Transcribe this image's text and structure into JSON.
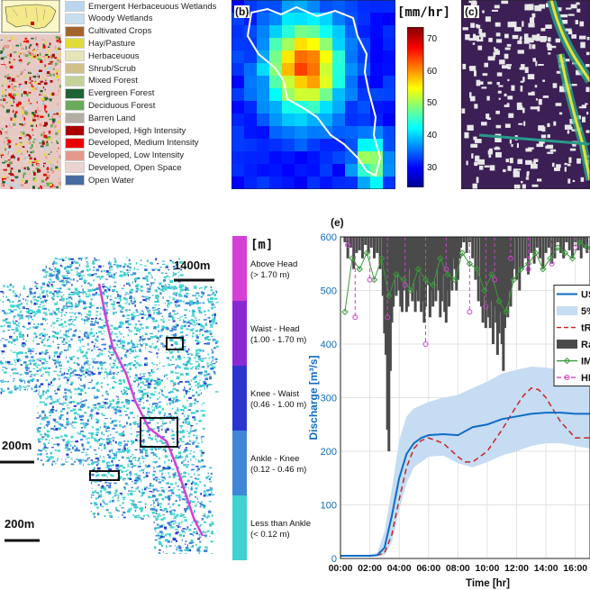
{
  "panel_a": {
    "legend": [
      {
        "label": "Emergent Herbaceuous Wetlands",
        "color": "#b9d6ee"
      },
      {
        "label": "Woody Wetlands",
        "color": "#c6dff0"
      },
      {
        "label": "Cultivated Crops",
        "color": "#a3652b"
      },
      {
        "label": "Hay/Pasture",
        "color": "#e1dc3c"
      },
      {
        "label": "Herbaceuous",
        "color": "#e7e5b8"
      },
      {
        "label": "Shrub/Scrub",
        "color": "#d2c08a"
      },
      {
        "label": "Mixed Forest",
        "color": "#c4d39a"
      },
      {
        "label": "Evergreen Forest",
        "color": "#1f6434"
      },
      {
        "label": "Deciduous Forest",
        "color": "#6aaa5a"
      },
      {
        "label": "Barren Land",
        "color": "#b3ada3"
      },
      {
        "label": "Developed, High Intensity",
        "color": "#ab0000"
      },
      {
        "label": "Developed, Medium Intensity",
        "color": "#eb0000"
      },
      {
        "label": "Developed, Low Intensity",
        "color": "#e39a8e"
      },
      {
        "label": "Developed, Open Space",
        "color": "#ebd3d2"
      },
      {
        "label": "Open Water",
        "color": "#466b9f"
      }
    ]
  },
  "panel_b": {
    "label": "(b)",
    "unit": "[mm/hr]",
    "colorbar_ticks": [
      70,
      60,
      50,
      40,
      30
    ],
    "colorbar_range": [
      24,
      74
    ]
  },
  "panel_c": {
    "label": "(c)"
  },
  "panel_d": {
    "unit": "[m]",
    "scalebars": [
      "1400m",
      "200m",
      "200m"
    ],
    "depth_classes": [
      {
        "name": "Above Head",
        "range": "(> 1.70 m)",
        "color": "#d63fd6"
      },
      {
        "name": "Waist - Head",
        "range": "(1.00 - 1.70 m)",
        "color": "#8a28d8"
      },
      {
        "name": "Knee - Waist",
        "range": "(0.46 - 1.00 m)",
        "color": "#2c34d0"
      },
      {
        "name": "Ankle - Knee",
        "range": "(0.12 - 0.46 m)",
        "color": "#3f86d8"
      },
      {
        "name": "Less than Ankle",
        "range": "(< 0.12 m)",
        "color": "#3fd2d0"
      }
    ]
  },
  "chart_data": {
    "type": "line",
    "label": "(e)",
    "xlabel": "Time [hr]",
    "ylabel": "Discharge [m³/s]",
    "xticks": [
      "00:00",
      "02:00",
      "04:00",
      "06:00",
      "08:00",
      "10:00",
      "12:00",
      "14:00",
      "16:00"
    ],
    "yticks": [
      0,
      100,
      200,
      300,
      400,
      500,
      600
    ],
    "ylim": [
      0,
      600
    ],
    "xlim": [
      0,
      17
    ],
    "grid": true,
    "legend_position": "right",
    "legend": [
      {
        "label": "US",
        "style": "line",
        "color": "#0e6cc7"
      },
      {
        "label": "5%",
        "style": "band",
        "color": "#c5dcf2"
      },
      {
        "label": "tR",
        "style": "dashed",
        "color": "#cc2222"
      },
      {
        "label": "Ra",
        "style": "bar",
        "color": "#4a4a4a"
      },
      {
        "label": "IM",
        "style": "marker-line",
        "color": "#3a9a3a"
      },
      {
        "label": "HF",
        "style": "marker-dashed",
        "color": "#cc44cc"
      }
    ],
    "median_x": [
      0,
      1,
      2,
      2.5,
      3,
      3.5,
      4,
      4.5,
      5,
      5.5,
      6,
      7,
      8,
      9,
      10,
      11,
      12,
      13,
      14,
      15,
      16,
      17
    ],
    "median_y": [
      5,
      5,
      5,
      6,
      20,
      80,
      150,
      195,
      215,
      225,
      230,
      232,
      230,
      245,
      250,
      260,
      265,
      270,
      272,
      272,
      270,
      270
    ],
    "band_x": [
      0,
      2,
      2.5,
      3,
      3.5,
      4,
      4.5,
      5,
      6,
      7,
      8,
      9,
      10,
      11,
      12,
      13,
      14,
      15,
      16,
      17
    ],
    "band_upper": [
      6,
      7,
      10,
      50,
      130,
      220,
      265,
      280,
      292,
      300,
      305,
      318,
      330,
      345,
      352,
      358,
      356,
      352,
      348,
      345
    ],
    "band_lower": [
      4,
      4,
      4,
      6,
      30,
      90,
      140,
      170,
      190,
      192,
      178,
      170,
      180,
      192,
      200,
      210,
      215,
      215,
      210,
      205
    ],
    "trmm_x": [
      0,
      2,
      2.5,
      3,
      3.5,
      4,
      4.5,
      5,
      5.5,
      6,
      7,
      8,
      8.5,
      9,
      10,
      11,
      12,
      12.5,
      13,
      13.5,
      14,
      15,
      16,
      17
    ],
    "trmm_y": [
      5,
      5,
      6,
      10,
      45,
      110,
      170,
      205,
      220,
      225,
      215,
      190,
      180,
      180,
      200,
      240,
      285,
      305,
      318,
      315,
      300,
      255,
      225,
      225
    ],
    "rain_bars": [
      [
        0.3,
        590
      ],
      [
        0.5,
        560
      ],
      [
        0.7,
        580
      ],
      [
        0.9,
        540
      ],
      [
        1.1,
        570
      ],
      [
        1.3,
        575
      ],
      [
        1.5,
        560
      ],
      [
        1.7,
        585
      ],
      [
        1.9,
        570
      ],
      [
        2.1,
        580
      ],
      [
        2.3,
        560
      ],
      [
        2.5,
        570
      ],
      [
        2.7,
        540
      ],
      [
        2.9,
        490
      ],
      [
        3.0,
        420
      ],
      [
        3.1,
        380
      ],
      [
        3.2,
        240
      ],
      [
        3.3,
        200
      ],
      [
        3.4,
        350
      ],
      [
        3.5,
        440
      ],
      [
        3.6,
        470
      ],
      [
        3.7,
        520
      ],
      [
        3.8,
        490
      ],
      [
        3.9,
        530
      ],
      [
        4.0,
        500
      ],
      [
        4.1,
        470
      ],
      [
        4.2,
        460
      ],
      [
        4.3,
        500
      ],
      [
        4.4,
        520
      ],
      [
        4.5,
        460
      ],
      [
        4.6,
        470
      ],
      [
        4.7,
        540
      ],
      [
        4.8,
        500
      ],
      [
        4.9,
        480
      ],
      [
        5.0,
        520
      ],
      [
        5.1,
        460
      ],
      [
        5.2,
        500
      ],
      [
        5.3,
        480
      ],
      [
        5.4,
        530
      ],
      [
        5.5,
        460
      ],
      [
        5.6,
        480
      ],
      [
        5.7,
        440
      ],
      [
        5.8,
        470
      ],
      [
        5.9,
        520
      ],
      [
        6.0,
        510
      ],
      [
        6.1,
        450
      ],
      [
        6.2,
        500
      ],
      [
        6.3,
        470
      ],
      [
        6.4,
        520
      ],
      [
        6.5,
        480
      ],
      [
        6.6,
        540
      ],
      [
        6.7,
        500
      ],
      [
        6.8,
        450
      ],
      [
        6.9,
        480
      ],
      [
        7.0,
        530
      ],
      [
        7.1,
        460
      ],
      [
        7.2,
        440
      ],
      [
        7.3,
        500
      ],
      [
        7.4,
        470
      ],
      [
        7.5,
        520
      ],
      [
        7.6,
        500
      ],
      [
        7.7,
        560
      ],
      [
        7.8,
        540
      ],
      [
        7.9,
        500
      ],
      [
        8.0,
        520
      ],
      [
        8.1,
        560
      ],
      [
        8.2,
        580
      ],
      [
        8.4,
        590
      ],
      [
        8.6,
        570
      ],
      [
        8.8,
        590
      ],
      [
        9.0,
        560
      ],
      [
        9.2,
        520
      ],
      [
        9.4,
        480
      ],
      [
        9.6,
        470
      ],
      [
        9.7,
        440
      ],
      [
        9.8,
        490
      ],
      [
        9.9,
        430
      ],
      [
        10.0,
        470
      ],
      [
        10.1,
        450
      ],
      [
        10.2,
        430
      ],
      [
        10.3,
        480
      ],
      [
        10.4,
        400
      ],
      [
        10.5,
        470
      ],
      [
        10.6,
        440
      ],
      [
        10.7,
        380
      ],
      [
        10.8,
        420
      ],
      [
        10.9,
        460
      ],
      [
        11.0,
        400
      ],
      [
        11.1,
        350
      ],
      [
        11.2,
        430
      ],
      [
        11.3,
        470
      ],
      [
        11.4,
        450
      ],
      [
        11.5,
        500
      ],
      [
        11.6,
        470
      ],
      [
        11.7,
        520
      ],
      [
        11.8,
        540
      ],
      [
        12.0,
        520
      ],
      [
        12.2,
        500
      ],
      [
        12.4,
        540
      ],
      [
        12.6,
        560
      ],
      [
        12.8,
        530
      ],
      [
        13.0,
        570
      ],
      [
        13.2,
        550
      ],
      [
        13.4,
        580
      ],
      [
        13.6,
        560
      ],
      [
        13.8,
        540
      ],
      [
        14.0,
        570
      ],
      [
        14.2,
        580
      ],
      [
        14.4,
        550
      ],
      [
        14.6,
        560
      ],
      [
        14.8,
        590
      ],
      [
        15.0,
        570
      ],
      [
        15.2,
        560
      ],
      [
        15.4,
        590
      ],
      [
        15.6,
        575
      ],
      [
        15.8,
        560
      ],
      [
        16.0,
        590
      ],
      [
        16.2,
        575
      ],
      [
        16.4,
        560
      ],
      [
        16.6,
        580
      ],
      [
        16.8,
        570
      ]
    ],
    "imerg_x": [
      0.3,
      0.8,
      1.3,
      1.8,
      2.3,
      2.8,
      3.3,
      3.8,
      4.3,
      4.8,
      5.3,
      5.8,
      6.3,
      6.8,
      7.3,
      7.8,
      8.3,
      8.8,
      9.3,
      9.8,
      10.3,
      10.8,
      11.3,
      11.8,
      12.3,
      12.8,
      13.3,
      13.8,
      14.3,
      14.8,
      15.3,
      15.8,
      16.3,
      16.8
    ],
    "imerg_y": [
      460,
      560,
      540,
      570,
      520,
      560,
      490,
      530,
      520,
      500,
      540,
      520,
      510,
      560,
      530,
      520,
      570,
      550,
      540,
      500,
      530,
      480,
      460,
      520,
      540,
      550,
      570,
      540,
      560,
      580,
      570,
      560,
      590,
      580
    ],
    "hfl_x": [
      0.5,
      1.0,
      2.0,
      3.2,
      4.4,
      5.8,
      7.2,
      8.8,
      9.9,
      10.5,
      11.6,
      12.8,
      14.4,
      16.0
    ],
    "hfl_y": [
      585,
      450,
      520,
      450,
      510,
      400,
      540,
      460,
      470,
      520,
      560,
      540,
      550,
      580
    ]
  }
}
